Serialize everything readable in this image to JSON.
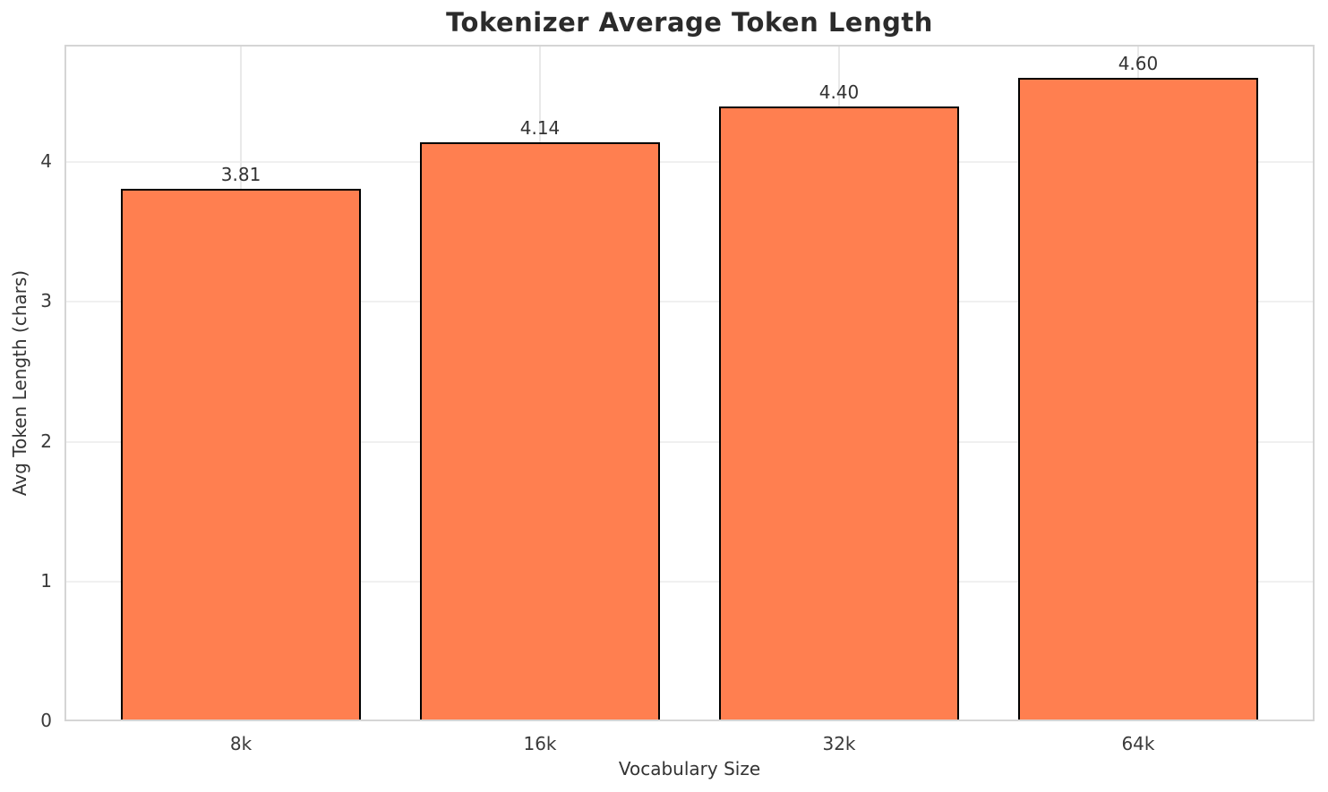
{
  "chart_data": {
    "type": "bar",
    "title": "Tokenizer Average Token Length",
    "xlabel": "Vocabulary Size",
    "ylabel": "Avg Token Length (chars)",
    "categories": [
      "8k",
      "16k",
      "32k",
      "64k"
    ],
    "values": [
      3.81,
      4.14,
      4.4,
      4.6
    ],
    "value_labels": [
      "3.81",
      "4.14",
      "4.40",
      "4.60"
    ],
    "ytick_labels": [
      "0",
      "1",
      "2",
      "3",
      "4"
    ],
    "yticks": [
      0,
      1,
      2,
      3,
      4
    ],
    "ylim": [
      0,
      4.84
    ],
    "grid": true,
    "legend": false,
    "bar_width_fraction": 0.8,
    "colors": {
      "bar_fill": "#FF7F50",
      "bar_edge": "#000000",
      "grid_h": "#F0F0F0",
      "grid_v": "#E9E9E9",
      "spine": "#D5D5D5",
      "title_text": "#2B2B2B",
      "axis_text": "#333333",
      "tick_text": "#3A3A3A",
      "background": "#FFFFFF"
    }
  }
}
